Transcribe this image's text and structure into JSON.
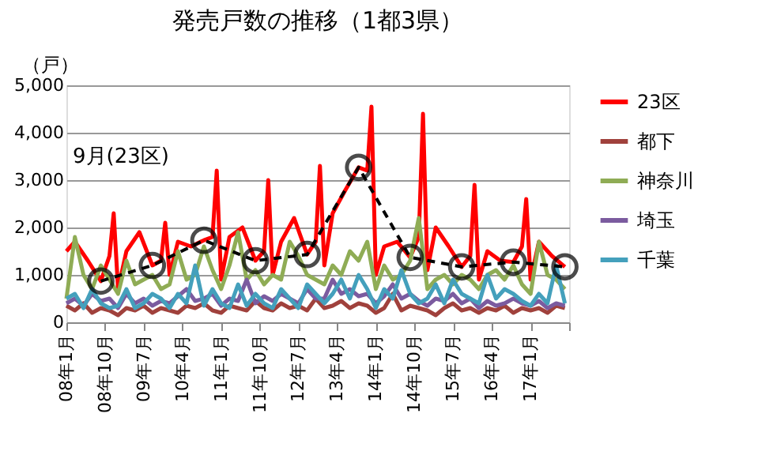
{
  "chart_data": {
    "type": "line",
    "title": "発売戸数の推移（1都3県）",
    "ylabel": "（戸）",
    "xlim": [
      "2008-01",
      "2017-10"
    ],
    "xticks": [
      {
        "value": "2008-01",
        "label": "08年1月"
      },
      {
        "value": "2008-10",
        "label": "08年10月"
      },
      {
        "value": "2009-07",
        "label": "09年7月"
      },
      {
        "value": "2010-04",
        "label": "10年4月"
      },
      {
        "value": "2011-01",
        "label": "11年1月"
      },
      {
        "value": "2011-10",
        "label": "11年10月"
      },
      {
        "value": "2012-07",
        "label": "12年7月"
      },
      {
        "value": "2013-04",
        "label": "13年4月"
      },
      {
        "value": "2014-01",
        "label": "14年1月"
      },
      {
        "value": "2014-10",
        "label": "14年10月"
      },
      {
        "value": "2015-07",
        "label": "15年7月"
      },
      {
        "value": "2016-04",
        "label": "16年4月"
      },
      {
        "value": "2017-01",
        "label": "17年1月"
      },
      {
        "value": "2017-10",
        "label": null
      }
    ],
    "ylim": [
      0,
      5000
    ],
    "yticks": [
      0,
      {
        "value": 1000,
        "label": "1,000"
      },
      {
        "value": 2000,
        "label": "2,000"
      },
      {
        "value": 3000,
        "label": "3,000"
      },
      {
        "value": 4000,
        "label": "4,000"
      },
      {
        "value": 5000,
        "label": "5,000"
      }
    ],
    "annotations": [
      "9月(23区)"
    ],
    "grid": "y",
    "legend": "right",
    "x": [
      "2008-01",
      "2008-03",
      "2008-05",
      "2008-07",
      "2008-09",
      "2008-11",
      "2009-01",
      "2009-03",
      "2009-05",
      "2009-07",
      "2009-09",
      "2009-11",
      "2010-01",
      "2010-03",
      "2010-05",
      "2010-07",
      "2010-09",
      "2010-11",
      "2011-01",
      "2011-03",
      "2011-05",
      "2011-07",
      "2011-09",
      "2011-11",
      "2012-01",
      "2012-03",
      "2012-05",
      "2012-07",
      "2012-09",
      "2012-11",
      "2013-01",
      "2013-03",
      "2013-05",
      "2013-07",
      "2013-09",
      "2013-11",
      "2014-01",
      "2014-03",
      "2014-05",
      "2014-07",
      "2014-09",
      "2014-11",
      "2015-01",
      "2015-03",
      "2015-05",
      "2015-07",
      "2015-09",
      "2015-11",
      "2016-01",
      "2016-03",
      "2016-05",
      "2016-07",
      "2016-09",
      "2016-11",
      "2017-01",
      "2017-03",
      "2017-05",
      "2017-07",
      "2017-09"
    ],
    "series": [
      {
        "name": "23区",
        "color": "#ff0000",
        "marker": "none",
        "line_style": "solid",
        "x": [
          "2008-01",
          "2008-03",
          "2008-06",
          "2008-09",
          "2008-11",
          "2008-12",
          "2009-01",
          "2009-03",
          "2009-06",
          "2009-09",
          "2009-11",
          "2009-12",
          "2010-01",
          "2010-03",
          "2010-06",
          "2010-09",
          "2010-11",
          "2010-12",
          "2011-01",
          "2011-03",
          "2011-06",
          "2011-09",
          "2011-11",
          "2011-12",
          "2012-01",
          "2012-03",
          "2012-06",
          "2012-09",
          "2012-11",
          "2012-12",
          "2013-01",
          "2013-03",
          "2013-06",
          "2013-09",
          "2013-11",
          "2013-12",
          "2014-01",
          "2014-03",
          "2014-06",
          "2014-09",
          "2014-11",
          "2014-12",
          "2015-01",
          "2015-03",
          "2015-06",
          "2015-09",
          "2015-11",
          "2015-12",
          "2016-01",
          "2016-03",
          "2016-06",
          "2016-09",
          "2016-11",
          "2016-12",
          "2017-01",
          "2017-03",
          "2017-06",
          "2017-09"
        ],
        "values": [
          1500,
          1700,
          1300,
          870,
          1400,
          2300,
          700,
          1500,
          1900,
          1200,
          1300,
          2100,
          1000,
          1700,
          1600,
          1730,
          1800,
          3200,
          900,
          1800,
          2000,
          1300,
          1500,
          3000,
          1000,
          1700,
          2200,
          1430,
          1700,
          3300,
          1200,
          2300,
          2800,
          3270,
          3200,
          4550,
          1000,
          1600,
          1700,
          1370,
          1800,
          4400,
          1100,
          2000,
          1600,
          1170,
          1400,
          2900,
          900,
          1500,
          1300,
          1270,
          1600,
          2600,
          900,
          1700,
          1400,
          1170
        ]
      },
      {
        "name": "都下",
        "color": "#a0413c",
        "marker": "none",
        "line_style": "solid",
        "values": [
          350,
          250,
          400,
          200,
          300,
          250,
          150,
          300,
          250,
          350,
          200,
          300,
          250,
          200,
          350,
          300,
          400,
          250,
          200,
          350,
          300,
          250,
          450,
          300,
          250,
          400,
          300,
          350,
          250,
          500,
          300,
          350,
          450,
          300,
          400,
          350,
          200,
          300,
          600,
          250,
          350,
          300,
          250,
          150,
          300,
          400,
          250,
          300,
          200,
          300,
          250,
          350,
          200,
          300,
          250,
          300,
          200,
          350,
          300
        ]
      },
      {
        "name": "神奈川",
        "color": "#8fac55",
        "marker": "none",
        "line_style": "solid",
        "values": [
          500,
          1800,
          1000,
          700,
          1200,
          900,
          600,
          1300,
          800,
          900,
          1000,
          700,
          800,
          1500,
          900,
          1000,
          1600,
          1100,
          700,
          1200,
          1900,
          900,
          1100,
          800,
          1000,
          900,
          1700,
          1400,
          1000,
          900,
          800,
          1200,
          1000,
          1500,
          1300,
          1700,
          700,
          1200,
          900,
          1000,
          1300,
          2200,
          700,
          900,
          1000,
          800,
          1000,
          900,
          700,
          1000,
          1100,
          900,
          1200,
          800,
          600,
          1700,
          1000,
          900,
          700
        ]
      },
      {
        "name": "埼玉",
        "color": "#7b5b9f",
        "marker": "none",
        "line_style": "solid",
        "values": [
          400,
          500,
          350,
          600,
          450,
          500,
          300,
          600,
          400,
          500,
          350,
          450,
          400,
          550,
          700,
          450,
          500,
          600,
          350,
          500,
          450,
          900,
          400,
          550,
          450,
          600,
          500,
          400,
          700,
          500,
          500,
          900,
          600,
          700,
          550,
          600,
          400,
          550,
          800,
          500,
          600,
          450,
          350,
          500,
          450,
          600,
          400,
          500,
          300,
          450,
          350,
          400,
          500,
          400,
          350,
          450,
          300,
          400,
          350
        ]
      },
      {
        "name": "千葉",
        "color": "#44a0bc",
        "marker": "none",
        "line_style": "solid",
        "values": [
          500,
          600,
          300,
          700,
          400,
          300,
          350,
          700,
          300,
          400,
          600,
          500,
          300,
          600,
          400,
          1200,
          350,
          700,
          400,
          300,
          800,
          350,
          600,
          400,
          300,
          700,
          500,
          300,
          800,
          600,
          400,
          600,
          900,
          500,
          1000,
          700,
          300,
          700,
          500,
          1100,
          600,
          400,
          500,
          800,
          400,
          900,
          600,
          500,
          400,
          1000,
          500,
          700,
          600,
          450,
          350,
          600,
          400,
          1200,
          400
        ]
      },
      {
        "color": "#000000",
        "marker": "circle",
        "line_style": "dashed",
        "x": [
          "2008-09",
          "2009-09",
          "2010-09",
          "2011-09",
          "2012-09",
          "2013-09",
          "2014-09",
          "2015-09",
          "2016-09",
          "2017-09"
        ],
        "values": [
          870,
          1200,
          1730,
          1300,
          1430,
          3270,
          1370,
          1170,
          1270,
          1170
        ]
      }
    ]
  }
}
